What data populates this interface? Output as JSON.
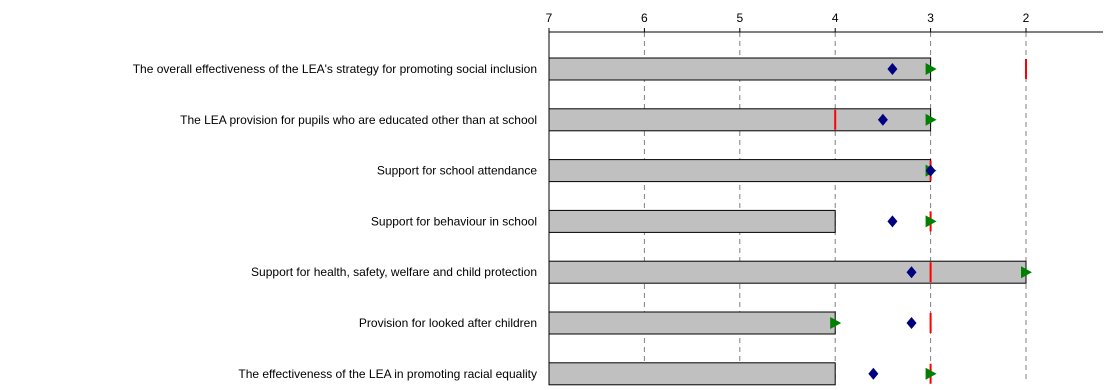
{
  "chart_data": {
    "type": "bar",
    "orientation": "horizontal",
    "x_axis": {
      "ticks": [
        7,
        6,
        5,
        4,
        3,
        2
      ],
      "range": [
        7,
        1
      ],
      "reversed": true,
      "position": "top",
      "grid": true
    },
    "categories": [
      "The overall effectiveness of the LEA's strategy for promoting social inclusion",
      "The LEA provision for pupils who are educated other than at school",
      "Support for school attendance",
      "Support for behaviour in school",
      "Support for health, safety, welfare and child protection",
      "Provision for looked after children",
      "The effectiveness of the LEA in promoting racial equality"
    ],
    "series": [
      {
        "values": [
          3,
          3,
          3,
          4,
          2,
          4,
          4
        ]
      },
      {
        "values": [
          3.4,
          3.5,
          3,
          3.4,
          3.2,
          3.2,
          3.6
        ]
      },
      {
        "values": [
          3,
          3,
          3,
          3,
          2,
          4,
          3
        ]
      },
      {
        "values": [
          2,
          4,
          3,
          3,
          3,
          3,
          3
        ]
      }
    ],
    "colors": {
      "bar_fill": "#c0c0c0",
      "bar_stroke": "#000000",
      "diamond": "#000080",
      "triangle": "#008000",
      "line_marker": "#ff0000",
      "grid": "#808080"
    }
  }
}
